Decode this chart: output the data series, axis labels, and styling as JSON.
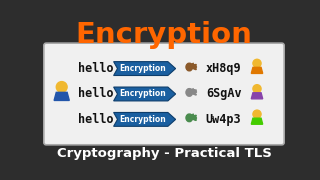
{
  "title": "Encryption",
  "subtitle": "Cryptography - Practical TLS",
  "background_color": "#2d2d2d",
  "title_color": "#ff6600",
  "subtitle_color": "#ffffff",
  "white_box_color": "#f0f0f0",
  "white_box_border": "#aaaaaa",
  "rows": [
    {
      "text": "hello",
      "arrow_label": "Encryption",
      "encrypted": "xH8q9",
      "key_color": "#8B5A2B",
      "person_color": "#e07800",
      "person_body": "#e07800"
    },
    {
      "text": "hello",
      "arrow_label": "Encryption",
      "encrypted": "6SgAv",
      "key_color": "#888888",
      "person_color": "#8844aa",
      "person_body": "#8844aa"
    },
    {
      "text": "hello",
      "arrow_label": "Encryption",
      "encrypted": "Uw4p3",
      "key_color": "#4a8c4e",
      "person_color": "#44cc00",
      "person_body": "#44cc00"
    }
  ],
  "arrow_fill": "#1a5fa0",
  "arrow_edge": "#0d3d6b",
  "arrow_label_color": "#ffffff",
  "left_person_body": "#2255aa",
  "left_person_head": "#f0b830",
  "hello_color": "#111111",
  "encrypted_color": "#111111",
  "person_head_color": "#f0b830"
}
